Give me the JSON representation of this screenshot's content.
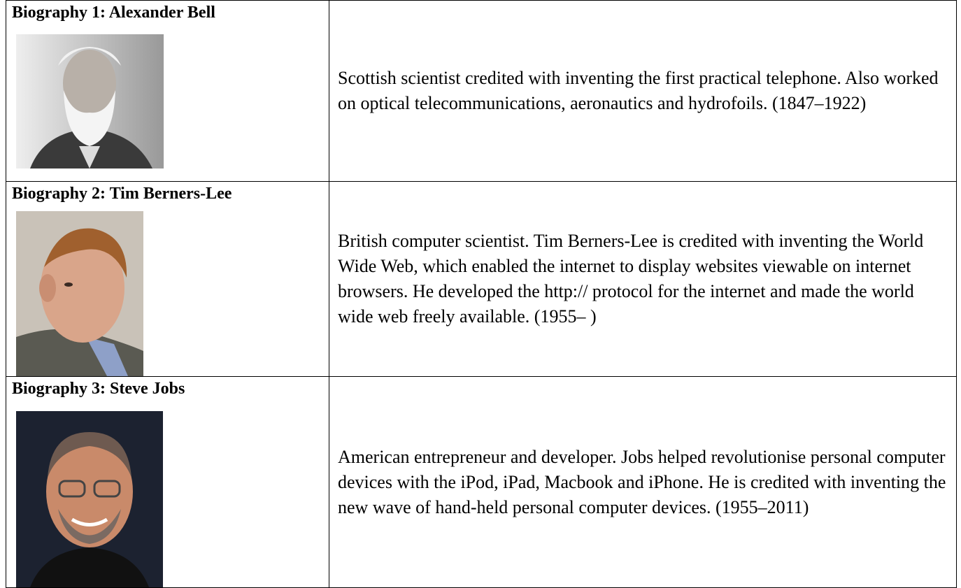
{
  "table": {
    "rows": [
      {
        "heading": "Biography 1: Alexander Bell",
        "description": "Scottish scientist credited with inventing the first practical telephone. Also worked on optical telecommunications, aeronautics and hydrofoils. (1847–1922)"
      },
      {
        "heading": "Biography 2: Tim Berners-Lee",
        "description": "British computer scientist. Tim Berners-Lee is credited with inventing the World Wide Web, which enabled the internet to display websites viewable on internet browsers. He developed the http:// protocol for the internet and made the world wide web freely available. (1955– )"
      },
      {
        "heading": "Biography 3: Steve Jobs",
        "description": "American entrepreneur and developer. Jobs helped revolutionise personal computer devices with the iPod, iPad, Macbook and iPhone. He is credited with inventing the new wave of hand-held personal computer devices. (1955–2011)"
      }
    ]
  }
}
